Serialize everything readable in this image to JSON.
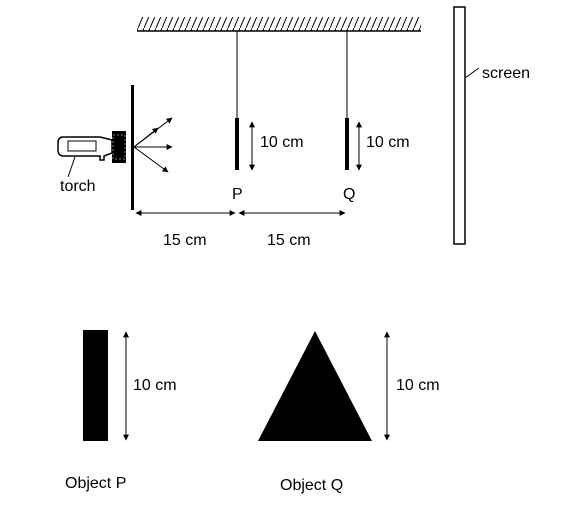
{
  "labels": {
    "screen": "screen",
    "torch": "torch",
    "p": "P",
    "q": "Q",
    "p_height": "10 cm",
    "q_height": "10 cm",
    "gap_1": "15 cm",
    "gap_2": "15 cm",
    "object_p_height": "10 cm",
    "object_q_height": "10 cm",
    "object_p": "Object P",
    "object_q": "Object Q"
  }
}
